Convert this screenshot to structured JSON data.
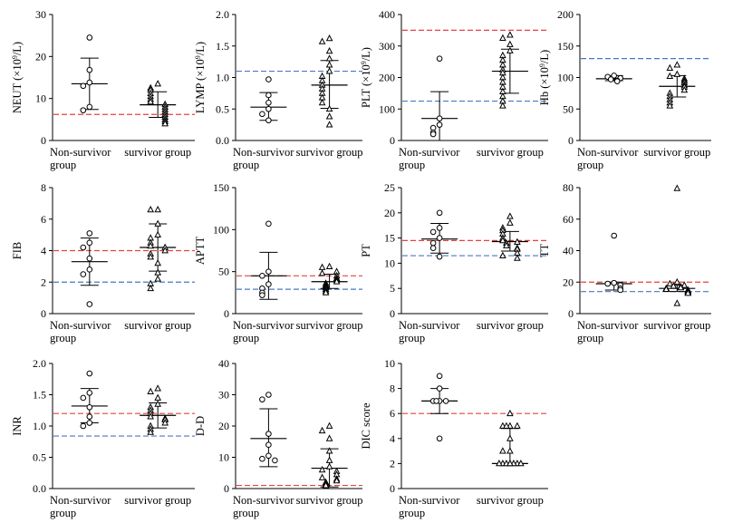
{
  "chart_data": [
    {
      "type": "scatter",
      "id": "NEUT",
      "ylabel": "NEUT (×10⁹/L)",
      "ylim": [
        0,
        30
      ],
      "yticks": [
        0,
        10,
        20,
        30
      ],
      "categories": [
        "Non-survivor group",
        "survivor group"
      ],
      "reference_lines": [
        {
          "value": 6.2,
          "color": "#e8423f"
        }
      ],
      "series": [
        {
          "marker": "circle",
          "points": [
            24.5,
            16.8,
            13.8,
            13.0,
            8.0,
            7.2
          ],
          "mean": 13.5,
          "error_upper": 19.6,
          "error_lower": 7.4
        },
        {
          "marker": "triangle",
          "points": [
            13.5,
            12.5,
            12.0,
            11.2,
            10.5,
            9.8,
            9.2,
            8.6,
            8.0,
            7.4,
            6.8,
            6.2,
            5.6,
            5.0,
            4.5,
            4.0
          ],
          "mean": 8.5,
          "error_upper": 11.6,
          "error_lower": 5.5
        }
      ]
    },
    {
      "type": "scatter",
      "id": "LYMP",
      "ylabel": "LYMP (×10⁹/L)",
      "ylim": [
        0,
        2.0
      ],
      "yticks": [
        0.0,
        0.5,
        1.0,
        1.5,
        2.0
      ],
      "categories": [
        "Non-survivor group",
        "survivor group"
      ],
      "reference_lines": [
        {
          "value": 1.1,
          "color": "#4a78c4"
        }
      ],
      "series": [
        {
          "marker": "circle",
          "points": [
            0.97,
            0.72,
            0.6,
            0.5,
            0.42,
            0.32
          ],
          "mean": 0.53,
          "error_upper": 0.76,
          "error_lower": 0.32
        },
        {
          "marker": "triangle",
          "points": [
            1.62,
            1.57,
            1.42,
            1.3,
            1.2,
            1.1,
            1.02,
            0.95,
            0.88,
            0.82,
            0.75,
            0.68,
            0.6,
            0.5,
            0.38,
            0.25
          ],
          "mean": 0.88,
          "error_upper": 1.27,
          "error_lower": 0.51
        }
      ]
    },
    {
      "type": "scatter",
      "id": "PLT",
      "ylabel": "PLT (×10⁹/L)",
      "ylim": [
        0,
        400
      ],
      "yticks": [
        0,
        100,
        200,
        300,
        400
      ],
      "categories": [
        "Non-survivor group",
        "survivor group"
      ],
      "reference_lines": [
        {
          "value": 350,
          "color": "#e8423f"
        },
        {
          "value": 125,
          "color": "#4a78c4"
        }
      ],
      "series": [
        {
          "marker": "circle",
          "points": [
            260,
            70,
            50,
            40,
            25,
            20
          ],
          "mean": 70,
          "error_upper": 155,
          "error_lower": 0
        },
        {
          "marker": "triangle",
          "points": [
            335,
            325,
            305,
            285,
            270,
            255,
            240,
            225,
            215,
            200,
            185,
            170,
            155,
            140,
            125,
            110
          ],
          "mean": 220,
          "error_upper": 290,
          "error_lower": 150
        }
      ]
    },
    {
      "type": "scatter",
      "id": "Hb",
      "ylabel": "Hb (×10⁹/L)",
      "ylim": [
        0,
        200
      ],
      "yticks": [
        0,
        50,
        100,
        150,
        200
      ],
      "categories": [
        "Non-survivor group",
        "survivor group"
      ],
      "reference_lines": [
        {
          "value": 130,
          "color": "#4a78c4"
        }
      ],
      "series": [
        {
          "marker": "circle",
          "points": [
            103,
            101,
            99,
            97,
            95,
            94
          ],
          "mean": 98,
          "error_upper": 103,
          "error_lower": 95
        },
        {
          "marker": "triangle",
          "points": [
            120,
            115,
            105,
            102,
            98,
            95,
            92,
            88,
            85,
            80,
            75,
            70,
            65,
            60,
            55
          ],
          "mean": 86,
          "error_upper": 103,
          "error_lower": 69
        }
      ]
    },
    {
      "type": "scatter",
      "id": "FIB",
      "ylabel": "FIB",
      "ylim": [
        0,
        8
      ],
      "yticks": [
        0,
        2,
        4,
        6,
        8
      ],
      "categories": [
        "Non-survivor group",
        "survivor group"
      ],
      "reference_lines": [
        {
          "value": 4.0,
          "color": "#e8423f"
        },
        {
          "value": 2.0,
          "color": "#4a78c4"
        }
      ],
      "series": [
        {
          "marker": "circle",
          "points": [
            5.1,
            4.5,
            4.2,
            3.5,
            2.8,
            2.5,
            0.6
          ],
          "mean": 3.3,
          "error_upper": 4.8,
          "error_lower": 1.8
        },
        {
          "marker": "triangle",
          "points": [
            6.6,
            6.6,
            5.7,
            5.0,
            4.8,
            4.5,
            4.3,
            4.2,
            4.0,
            3.8,
            3.6,
            3.2,
            2.6,
            2.2,
            1.9,
            1.6
          ],
          "mean": 4.2,
          "error_upper": 5.7,
          "error_lower": 2.7
        }
      ]
    },
    {
      "type": "scatter",
      "id": "APTT",
      "ylabel": "APTT",
      "ylim": [
        0,
        150
      ],
      "yticks": [
        0,
        50,
        100,
        150
      ],
      "categories": [
        "Non-survivor group",
        "survivor group"
      ],
      "reference_lines": [
        {
          "value": 45,
          "color": "#e8423f"
        },
        {
          "value": 29,
          "color": "#4a78c4"
        }
      ],
      "series": [
        {
          "marker": "circle",
          "points": [
            107,
            50,
            45,
            35,
            30,
            25,
            22
          ],
          "mean": 45,
          "error_upper": 73,
          "error_lower": 17
        },
        {
          "marker": "triangle",
          "points": [
            56,
            55,
            50,
            48,
            45,
            42,
            40,
            38,
            36,
            34,
            33,
            31,
            29,
            27,
            25
          ],
          "mean": 38,
          "error_upper": 47,
          "error_lower": 30
        }
      ]
    },
    {
      "type": "scatter",
      "id": "PT",
      "ylabel": "PT",
      "ylim": [
        0,
        25
      ],
      "yticks": [
        0,
        5,
        10,
        15,
        20,
        25
      ],
      "categories": [
        "Non-survivor group",
        "survivor group"
      ],
      "reference_lines": [
        {
          "value": 14.5,
          "color": "#e8423f"
        },
        {
          "value": 11.5,
          "color": "#4a78c4"
        }
      ],
      "series": [
        {
          "marker": "circle",
          "points": [
            20.0,
            17.0,
            16.2,
            15.0,
            14.0,
            13.0,
            11.3
          ],
          "mean": 14.8,
          "error_upper": 17.9,
          "error_lower": 12.0
        },
        {
          "marker": "triangle",
          "points": [
            19.3,
            18.0,
            17.0,
            16.5,
            15.8,
            15.0,
            14.5,
            14.2,
            14.0,
            13.5,
            13.0,
            12.8,
            12.0,
            11.5,
            11.0
          ],
          "mean": 14.3,
          "error_upper": 16.3,
          "error_lower": 12.4
        }
      ]
    },
    {
      "type": "scatter",
      "id": "TT",
      "ylabel": "TT",
      "ylim": [
        0,
        80
      ],
      "yticks": [
        0,
        20,
        40,
        60,
        80
      ],
      "categories": [
        "Non-survivor group",
        "survivor group"
      ],
      "reference_lines": [
        {
          "value": 20,
          "color": "#e8423f"
        },
        {
          "value": 14,
          "color": "#4a78c4"
        }
      ],
      "series": [
        {
          "marker": "circle",
          "points": [
            49.5,
            19.5,
            19.0,
            18.0,
            16.0,
            15.0
          ],
          "mean": 19,
          "error_upper": 20,
          "error_lower": 15
        },
        {
          "marker": "triangle",
          "points": [
            79.5,
            20.0,
            19.0,
            18.0,
            17.5,
            17.0,
            16.5,
            16.0,
            15.5,
            15.0,
            14.5,
            14.0,
            13.5,
            13.0,
            6.5
          ],
          "mean": 16,
          "error_upper": 18,
          "error_lower": 14
        }
      ]
    },
    {
      "type": "scatter",
      "id": "INR",
      "ylabel": "INR",
      "ylim": [
        0,
        2.0
      ],
      "yticks": [
        0.0,
        0.5,
        1.0,
        1.5,
        2.0
      ],
      "categories": [
        "Non-survivor group",
        "survivor group"
      ],
      "reference_lines": [
        {
          "value": 1.2,
          "color": "#e8423f"
        },
        {
          "value": 0.84,
          "color": "#4a78c4"
        }
      ],
      "series": [
        {
          "marker": "circle",
          "points": [
            1.84,
            1.53,
            1.45,
            1.3,
            1.15,
            1.05,
            1.0
          ],
          "mean": 1.32,
          "error_upper": 1.6,
          "error_lower": 1.05
        },
        {
          "marker": "triangle",
          "points": [
            1.6,
            1.55,
            1.45,
            1.35,
            1.3,
            1.25,
            1.2,
            1.15,
            1.12,
            1.1,
            1.05,
            1.0,
            0.95,
            0.9
          ],
          "mean": 1.17,
          "error_upper": 1.37,
          "error_lower": 0.97
        }
      ]
    },
    {
      "type": "scatter",
      "id": "D-D",
      "ylabel": "D-D",
      "ylim": [
        0,
        40
      ],
      "yticks": [
        0,
        10,
        20,
        30,
        40
      ],
      "categories": [
        "Non-survivor group",
        "survivor group"
      ],
      "reference_lines": [
        {
          "value": 1.0,
          "color": "#e8423f"
        }
      ],
      "series": [
        {
          "marker": "circle",
          "points": [
            30.0,
            28.5,
            17.5,
            14.0,
            10.5,
            9.5,
            9.0
          ],
          "mean": 16,
          "error_upper": 25.5,
          "error_lower": 7
        },
        {
          "marker": "triangle",
          "points": [
            20.0,
            18.5,
            16.0,
            12.0,
            9.0,
            7.0,
            6.0,
            5.5,
            4.5,
            3.5,
            3.0,
            2.5,
            2.0,
            1.5,
            1.0
          ],
          "mean": 6.5,
          "error_upper": 12.7,
          "error_lower": 0.5
        }
      ]
    },
    {
      "type": "scatter",
      "id": "DIC",
      "ylabel": "DIC score",
      "ylim": [
        0,
        10
      ],
      "yticks": [
        0,
        2,
        4,
        6,
        8,
        10
      ],
      "categories": [
        "Non-survivor group",
        "survivor group"
      ],
      "reference_lines": [
        {
          "value": 6.0,
          "color": "#e8423f"
        }
      ],
      "series": [
        {
          "marker": "circle",
          "points": [
            9,
            8,
            7,
            7,
            7,
            7,
            4
          ],
          "mean": 7,
          "error_upper": 8,
          "error_lower": 6
        },
        {
          "marker": "triangle",
          "points": [
            6,
            5,
            5,
            5,
            5,
            4,
            3,
            3,
            2,
            2,
            2,
            2,
            2,
            2,
            2,
            2
          ],
          "mean": 2,
          "error_upper": 4.8,
          "error_lower": 2
        }
      ]
    }
  ]
}
